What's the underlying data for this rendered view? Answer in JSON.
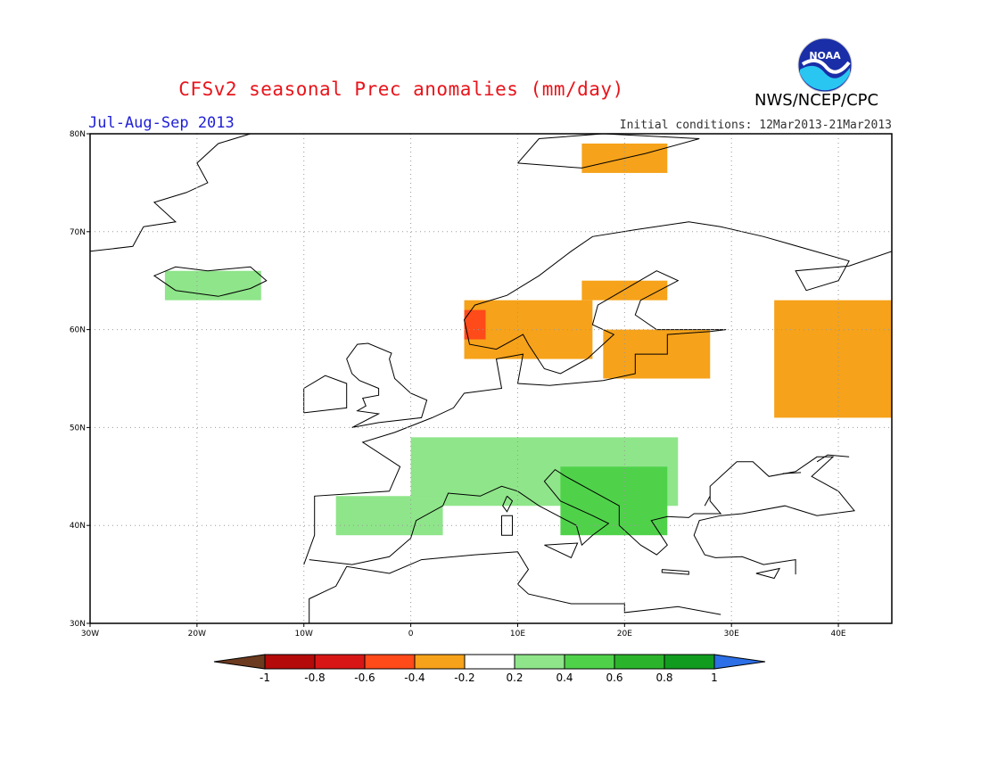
{
  "header": {
    "title": "CFSv2 seasonal Prec anomalies (mm/day)",
    "organization": "NWS/NCEP/CPC",
    "period": "Jul-Aug-Sep 2013",
    "initial_conditions": "Initial conditions: 12Mar2013-21Mar2013",
    "logo_text": "NOAA"
  },
  "map": {
    "lon_range": [
      -30,
      45
    ],
    "lat_range": [
      30,
      80
    ],
    "lon_ticks": [
      "30W",
      "20W",
      "10W",
      "0",
      "10E",
      "20E",
      "30E",
      "40E"
    ],
    "lat_ticks": [
      "80N",
      "70N",
      "60N",
      "50N",
      "40N",
      "30N"
    ],
    "grid": true,
    "anomaly_regions": [
      {
        "name": "Scandinavia",
        "lon": [
          5,
          17
        ],
        "lat": [
          57,
          63
        ],
        "level": "-0.4"
      },
      {
        "name": "Norway coast",
        "lon": [
          5,
          7
        ],
        "lat": [
          59,
          62
        ],
        "level": "-0.8"
      },
      {
        "name": "Finland-Baltic",
        "lon": [
          18,
          28
        ],
        "lat": [
          55,
          60
        ],
        "level": "-0.4"
      },
      {
        "name": "Northern Scandinavia",
        "lon": [
          16,
          24
        ],
        "lat": [
          63,
          65
        ],
        "level": "-0.4"
      },
      {
        "name": "Western Russia",
        "lon": [
          34,
          45
        ],
        "lat": [
          51,
          63
        ],
        "level": "-0.4"
      },
      {
        "name": "Central Europe",
        "lon": [
          0,
          25
        ],
        "lat": [
          42,
          49
        ],
        "level": "0.4"
      },
      {
        "name": "Balkans",
        "lon": [
          14,
          24
        ],
        "lat": [
          39,
          46
        ],
        "level": "0.6"
      },
      {
        "name": "Iberia",
        "lon": [
          -7,
          3
        ],
        "lat": [
          39,
          43
        ],
        "level": "0.4"
      },
      {
        "name": "Iceland",
        "lon": [
          -23,
          -14
        ],
        "lat": [
          63,
          66
        ],
        "level": "0.4"
      },
      {
        "name": "Arctic islands",
        "lon": [
          16,
          24
        ],
        "lat": [
          76,
          79
        ],
        "level": "-0.4"
      }
    ]
  },
  "colorbar": {
    "labels": [
      "-1",
      "-0.8",
      "-0.6",
      "-0.4",
      "-0.2",
      "0.2",
      "0.4",
      "0.6",
      "0.8",
      "1"
    ],
    "colors": [
      "#6b3a1f",
      "#b40a0a",
      "#d81616",
      "#ff4a1a",
      "#f6a21a",
      "#ffffff",
      "#8fe58a",
      "#4fd24a",
      "#2bb42b",
      "#119c1f",
      "#2c6fe6"
    ]
  }
}
